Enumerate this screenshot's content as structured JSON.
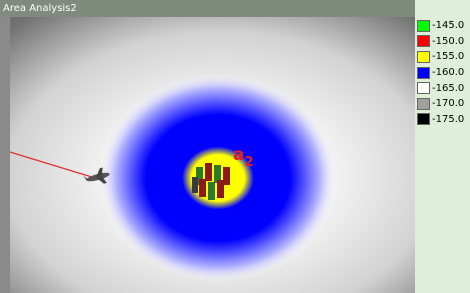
{
  "window": {
    "title": "Area Analysis2"
  },
  "annotation": {
    "text": "a",
    "subscript": "2"
  },
  "legend": [
    {
      "label": "-145.0",
      "color": "#00ff00"
    },
    {
      "label": "-150.0",
      "color": "#ff0000"
    },
    {
      "label": "-155.0",
      "color": "#ffff00"
    },
    {
      "label": "-160.0",
      "color": "#0000ff"
    },
    {
      "label": "-165.0",
      "color": "#ffffff"
    },
    {
      "label": "-170.0",
      "color": "#a0a0a0"
    },
    {
      "label": "-175.0",
      "color": "#000000"
    }
  ]
}
